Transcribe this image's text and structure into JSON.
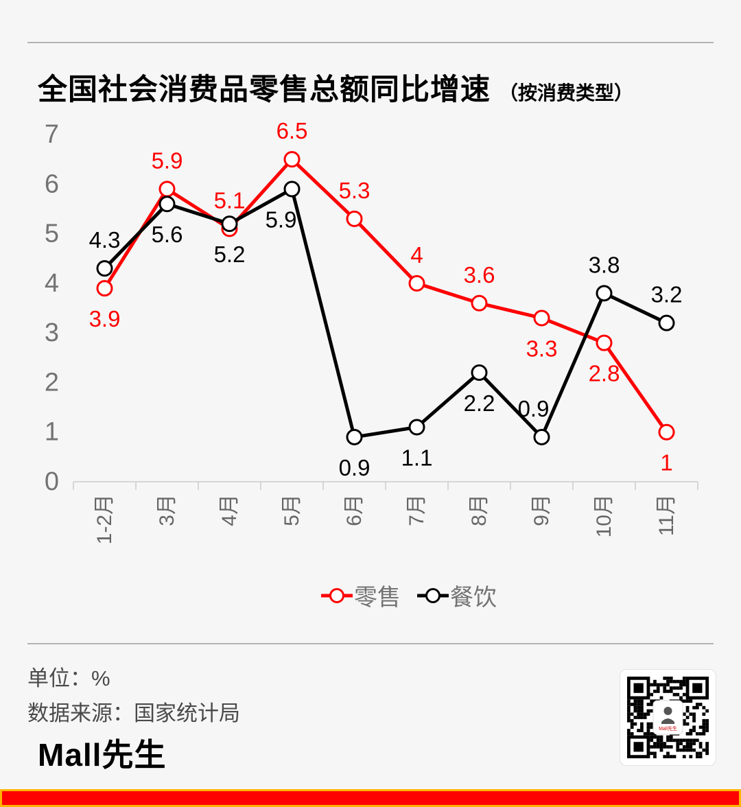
{
  "header": {
    "title": "全国社会消费品零售总额同比增速",
    "subtitle": "（按消费类型）"
  },
  "chart_data": {
    "type": "line",
    "title": "全国社会消费品零售总额同比增速（按消费类型）",
    "unit": "%",
    "categories": [
      "1-2月",
      "3月",
      "4月",
      "5月",
      "6月",
      "7月",
      "8月",
      "9月",
      "10月",
      "11月"
    ],
    "series": [
      {
        "name": "零售",
        "color": "#fe0000",
        "values": [
          3.9,
          5.9,
          5.1,
          6.5,
          5.3,
          4,
          3.6,
          3.3,
          2.8,
          1
        ],
        "label_positions": [
          "below",
          "above",
          "above",
          "above",
          "above",
          "above",
          "above",
          "below",
          "below",
          "below"
        ]
      },
      {
        "name": "餐饮",
        "color": "#000000",
        "values": [
          4.3,
          5.6,
          5.2,
          5.9,
          0.9,
          1.1,
          2.2,
          0.9,
          3.8,
          3.2
        ],
        "label_positions": [
          "above",
          "below",
          "below",
          "below-left",
          "below",
          "below",
          "below",
          "above-left",
          "above",
          "above"
        ]
      }
    ],
    "ylim": [
      0,
      7
    ],
    "yticks": [
      0,
      1,
      2,
      3,
      4,
      5,
      6,
      7
    ],
    "grid": false,
    "legend_position": "bottom",
    "marker": "open-circle",
    "x_label_rotation": -90
  },
  "footer": {
    "unit_label": "单位：%",
    "source_label": "数据来源：国家统计局",
    "logo": "Mall先生",
    "qr_center_label": "Mall先生"
  },
  "colors": {
    "background": "#f6f6f6",
    "accent_red": "#fe0000",
    "bar_border": "#ffb400",
    "axis": "#cccccc",
    "ytick_label": "#737373",
    "xtick_label": "#666666",
    "divider": "#b3b3b3"
  }
}
